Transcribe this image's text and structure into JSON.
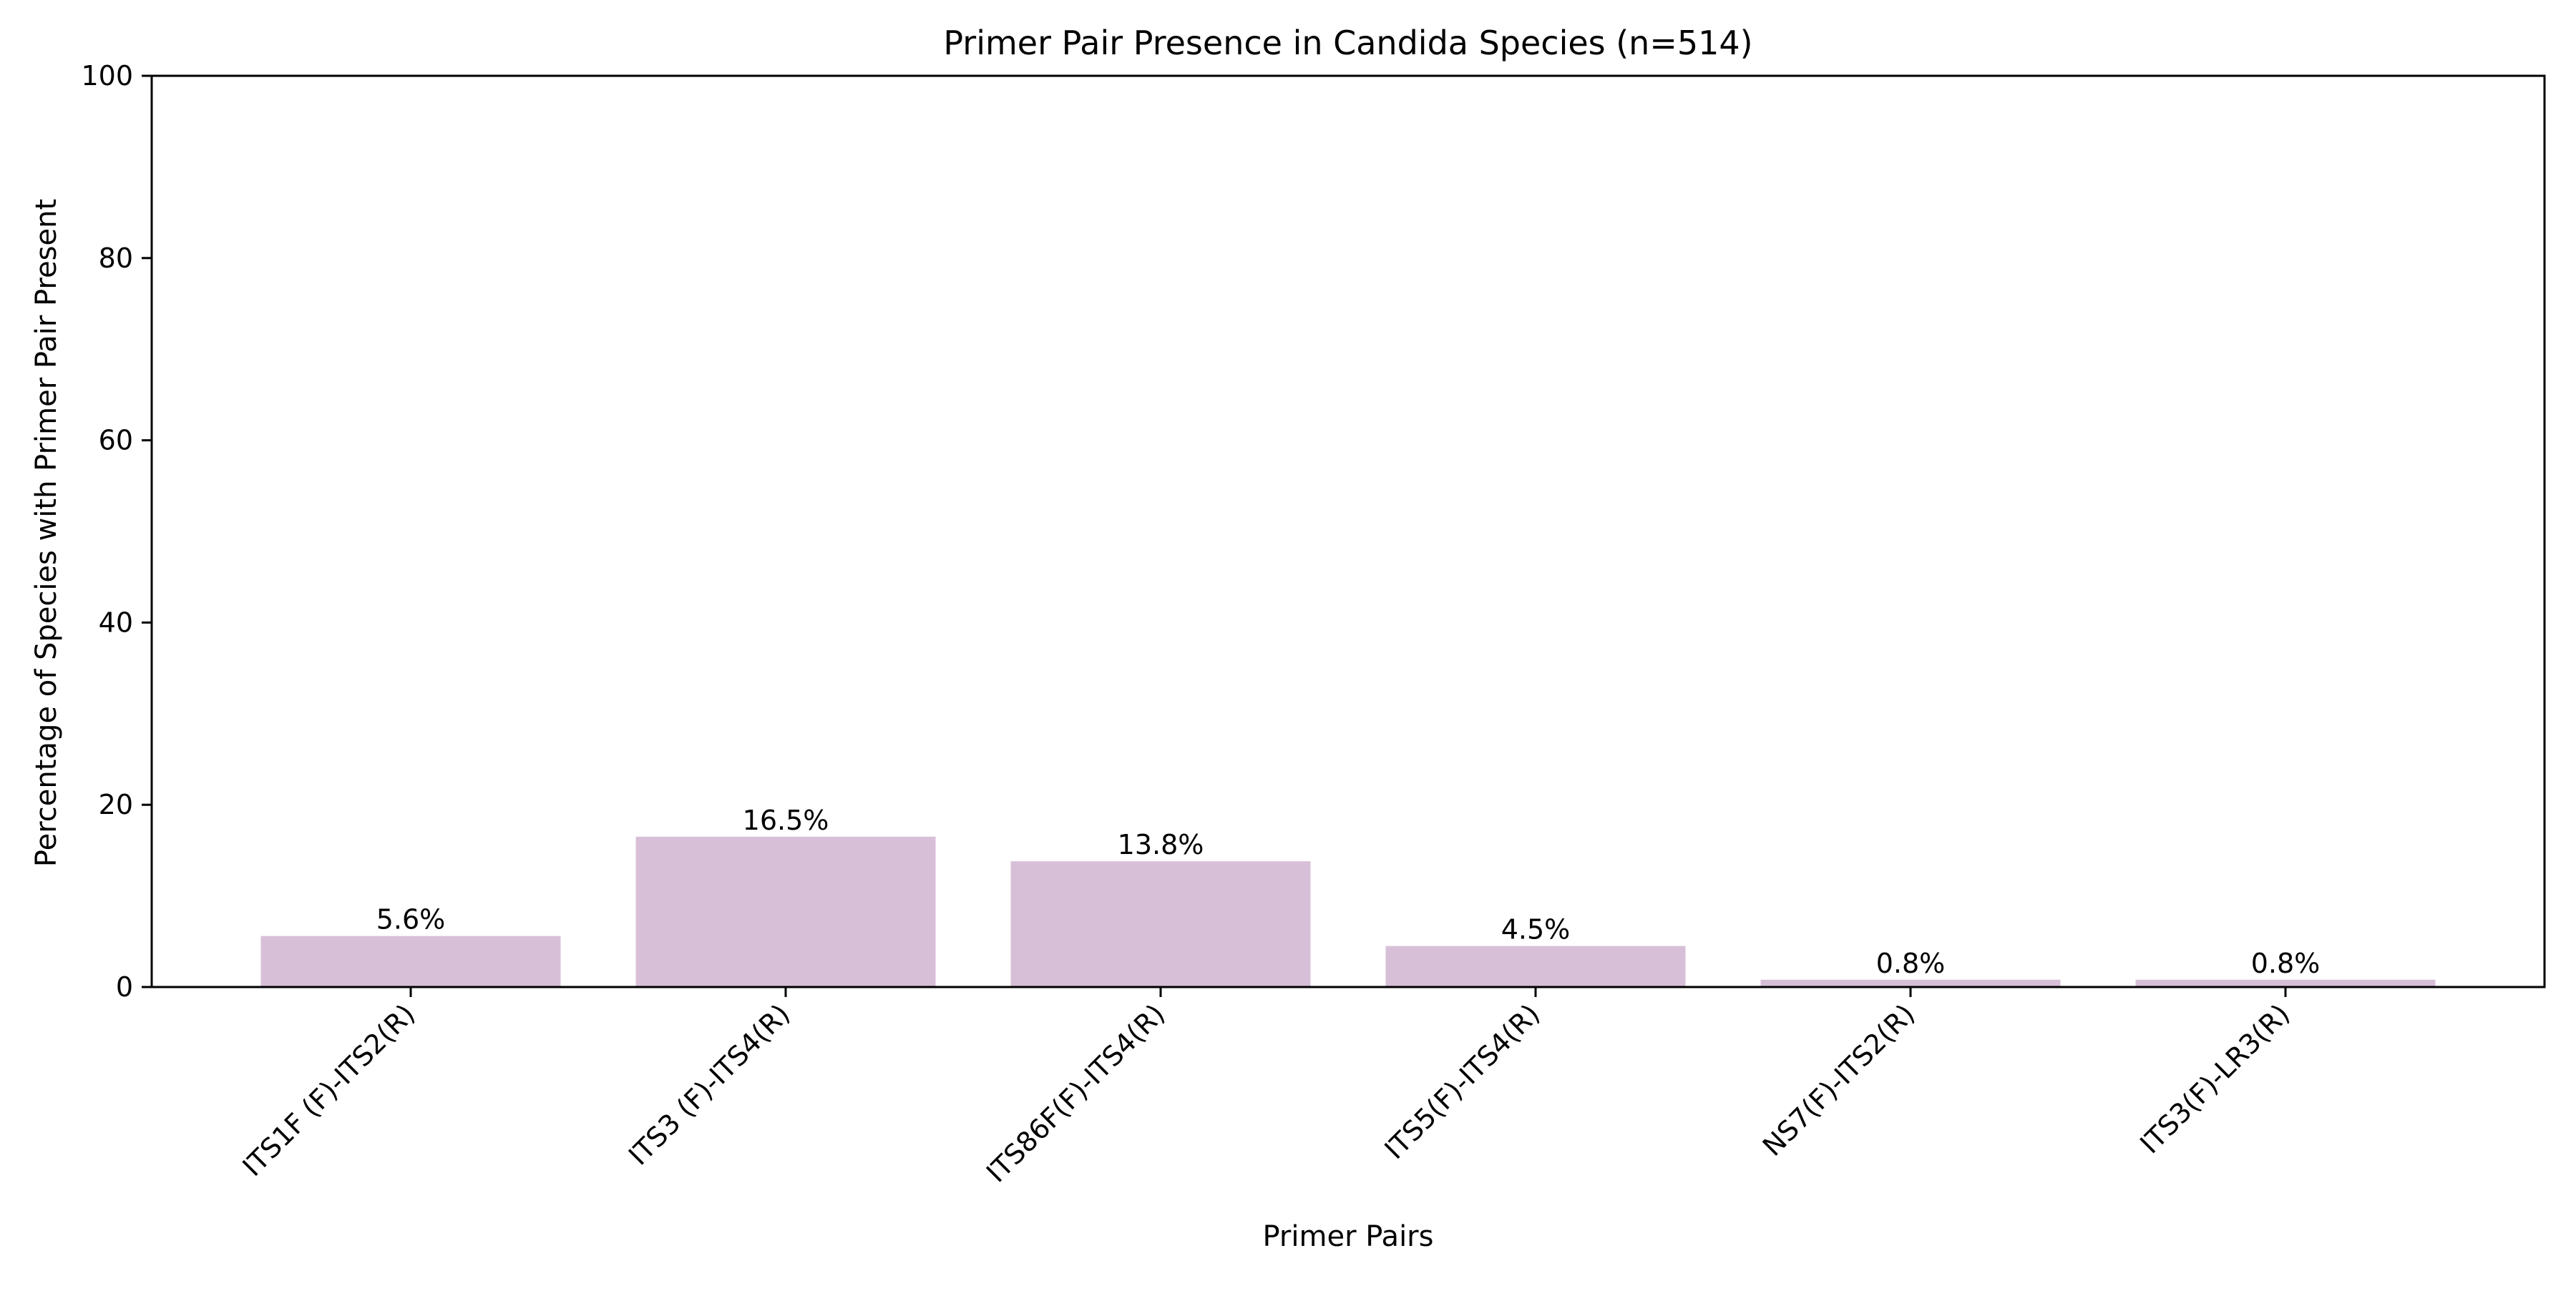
{
  "chart_data": {
    "type": "bar",
    "title": "Primer Pair Presence in Candida Species (n=514)",
    "xlabel": "Primer Pairs",
    "ylabel": "Percentage of Species with Primer Pair Present",
    "categories": [
      "ITS1F (F)-ITS2(R)",
      "ITS3 (F)-ITS4(R)",
      "ITS86F(F)-ITS4(R)",
      "ITS5(F)-ITS4(R)",
      "NS7(F)-ITS2(R)",
      "ITS3(F)-LR3(R)"
    ],
    "values": [
      5.6,
      16.5,
      13.8,
      4.5,
      0.8,
      0.8
    ],
    "data_labels": [
      "5.6%",
      "16.5%",
      "13.8%",
      "4.5%",
      "0.8%",
      "0.8%"
    ],
    "ylim": [
      0,
      100
    ],
    "yticks": [
      0,
      20,
      40,
      60,
      80,
      100
    ],
    "bar_color": "#d8bfd8",
    "grid": false,
    "legend": "none"
  }
}
